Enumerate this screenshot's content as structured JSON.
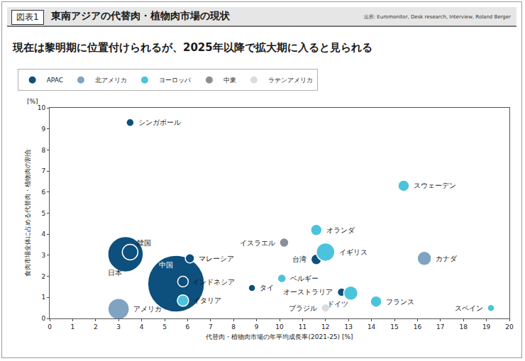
{
  "header": {
    "label": "図表1",
    "title": "東南アジアの代替肉・植物肉市場の現状",
    "source": "出所: Euromonitor, Desk research, Interview, Roland Berger",
    "subtitle": "現在は黎明期に位置付けられるが、2025年以降で拡大期に入ると見られる"
  },
  "chart_data": {
    "type": "scatter",
    "marker": "bubble",
    "xlabel": "代替肉・植物肉市場の年平均成長率(2021-25) [%]",
    "ylabel": "食肉市場全体に占める代替肉・植物肉の割合",
    "ylabel_unit": "[%]",
    "xlim": [
      0,
      20
    ],
    "xticks": [
      0,
      1,
      2,
      3,
      4,
      5,
      6,
      7,
      8,
      9,
      10,
      11,
      12,
      13,
      14,
      15,
      16,
      17,
      18,
      19,
      20
    ],
    "ylim": [
      0,
      10
    ],
    "yticks": [
      0,
      1,
      2,
      3,
      4,
      5,
      6,
      7,
      8,
      9,
      10
    ],
    "grid": false,
    "legend": "top-left",
    "series": [
      {
        "name": "APAC",
        "color": "#0d4f7d",
        "labels": [
          "日本",
          "中国",
          "シンガポール",
          "韓国",
          "インドネシア",
          "マレーシア",
          "タイ",
          "台湾",
          "オーストラリア"
        ],
        "x": [
          3.3,
          5.5,
          3.5,
          3.5,
          5.8,
          6.1,
          8.8,
          11.6,
          12.7
        ],
        "values": [
          3.05,
          1.65,
          9.3,
          3.15,
          1.75,
          2.85,
          1.45,
          2.8,
          1.25
        ],
        "sizes": [
          50,
          80,
          11,
          22,
          15,
          13,
          10,
          15,
          12
        ]
      },
      {
        "name": "北アメリカ",
        "color": "#7fa3c0",
        "labels": [
          "アメリカ",
          "カナダ"
        ],
        "x": [
          3.0,
          16.3
        ],
        "values": [
          0.45,
          2.85
        ],
        "sizes": [
          30,
          20
        ]
      },
      {
        "name": "ヨーロッパ",
        "color": "#4cc3dc",
        "labels": [
          "イギリス",
          "ドイツ",
          "スウェーデン",
          "オランダ",
          "ベルギー",
          "フランス",
          "スペイン",
          "イタリア"
        ],
        "x": [
          12.0,
          13.1,
          15.4,
          11.6,
          10.1,
          14.2,
          19.2,
          5.8
        ],
        "values": [
          3.15,
          1.2,
          6.3,
          4.2,
          1.9,
          0.8,
          0.5,
          0.85
        ],
        "sizes": [
          26,
          20,
          16,
          16,
          12,
          16,
          10,
          16
        ]
      },
      {
        "name": "中東",
        "color": "#8a8f96",
        "labels": [
          "イスラエル"
        ],
        "x": [
          10.2
        ],
        "values": [
          3.6
        ],
        "sizes": [
          13
        ]
      },
      {
        "name": "ラテンアメリカ",
        "color": "#dcdcdc",
        "labels": [
          "ブラジル"
        ],
        "x": [
          12.0
        ],
        "values": [
          0.5
        ],
        "sizes": [
          12
        ]
      }
    ]
  }
}
